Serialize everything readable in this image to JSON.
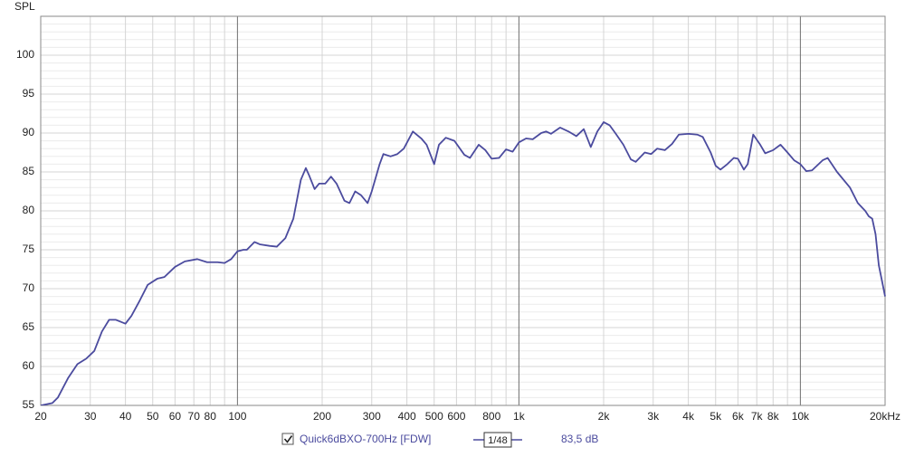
{
  "chart_data": {
    "type": "line",
    "ylabel": "SPL",
    "log_x": true,
    "grid": true,
    "y_minor_step": 1,
    "xlim": [
      20,
      20000
    ],
    "ylim": [
      55,
      105
    ],
    "yticks": [
      55,
      60,
      65,
      70,
      75,
      80,
      85,
      90,
      95,
      100
    ],
    "xticks": [
      20,
      30,
      40,
      50,
      60,
      70,
      80,
      100,
      200,
      300,
      400,
      500,
      600,
      800,
      {
        "value": 1000,
        "label": "1k"
      },
      {
        "value": 2000,
        "label": "2k"
      },
      {
        "value": 3000,
        "label": "3k"
      },
      {
        "value": 4000,
        "label": "4k"
      },
      {
        "value": 5000,
        "label": "5k"
      },
      {
        "value": 6000,
        "label": "6k"
      },
      {
        "value": 7000,
        "label": "7k"
      },
      {
        "value": 8000,
        "label": "8k"
      },
      {
        "value": 10000,
        "label": "10k"
      },
      {
        "value": 20000,
        "label": "20kHz"
      }
    ],
    "x_minor_ticks": [
      90,
      700,
      900,
      9000
    ],
    "legend": {
      "smoothing": "1/48",
      "offset": "83,5 dB"
    },
    "x": [
      20,
      22,
      23,
      25,
      27,
      29,
      31,
      33,
      35,
      37,
      40,
      42,
      45,
      48,
      52,
      55,
      60,
      65,
      72,
      78,
      85,
      90,
      95,
      100,
      105,
      108,
      115,
      120,
      130,
      138,
      148,
      158,
      168,
      175,
      180,
      188,
      195,
      205,
      215,
      225,
      240,
      250,
      262,
      275,
      290,
      300,
      320,
      330,
      350,
      370,
      390,
      420,
      450,
      470,
      500,
      520,
      550,
      590,
      640,
      670,
      720,
      760,
      800,
      850,
      900,
      950,
      1000,
      1060,
      1120,
      1200,
      1250,
      1300,
      1400,
      1500,
      1600,
      1700,
      1800,
      1900,
      2000,
      2100,
      2200,
      2350,
      2500,
      2600,
      2800,
      2950,
      3100,
      3300,
      3500,
      3700,
      4000,
      4300,
      4500,
      4800,
      5000,
      5200,
      5500,
      5800,
      6000,
      6300,
      6500,
      6800,
      7200,
      7500,
      8000,
      8500,
      9000,
      9500,
      10000,
      10500,
      11000,
      12000,
      12500,
      13500,
      15000,
      16000,
      17000,
      17500,
      18000,
      18500,
      19000,
      19500,
      20000
    ],
    "series": [
      {
        "name": "Quick6dBXO-700Hz [FDW]",
        "color": "#4b4b9e",
        "values": [
          55.0,
          55.3,
          56,
          58.5,
          60.3,
          61,
          62,
          64.5,
          66,
          66,
          65.5,
          66.5,
          68.5,
          70.5,
          71.3,
          71.5,
          72.8,
          73.5,
          73.8,
          73.4,
          73.4,
          73.3,
          73.8,
          74.8,
          75,
          75.0,
          76,
          75.7,
          75.5,
          75.4,
          76.5,
          79,
          84,
          85.5,
          84.5,
          82.8,
          83.5,
          83.5,
          84.4,
          83.5,
          81.3,
          81,
          82.5,
          82,
          81,
          82.5,
          86,
          87.3,
          87,
          87.3,
          88,
          90.2,
          89.3,
          88.5,
          86,
          88.5,
          89.4,
          89,
          87.2,
          86.8,
          88.5,
          87.8,
          86.7,
          86.8,
          87.9,
          87.6,
          88.8,
          89.3,
          89.2,
          90,
          90.2,
          89.9,
          90.7,
          90.2,
          89.6,
          90.5,
          88.2,
          90.2,
          91.4,
          91,
          90,
          88.5,
          86.6,
          86.3,
          87.5,
          87.3,
          88,
          87.8,
          88.6,
          89.8,
          89.9,
          89.8,
          89.5,
          87.5,
          85.8,
          85.3,
          86,
          86.8,
          86.7,
          85.3,
          86,
          89.8,
          88.5,
          87.4,
          87.8,
          88.5,
          87.5,
          86.5,
          86,
          85.1,
          85.2,
          86.5,
          86.8,
          85,
          83,
          81,
          80,
          79.3,
          79,
          77,
          73,
          71,
          69
        ]
      }
    ]
  }
}
